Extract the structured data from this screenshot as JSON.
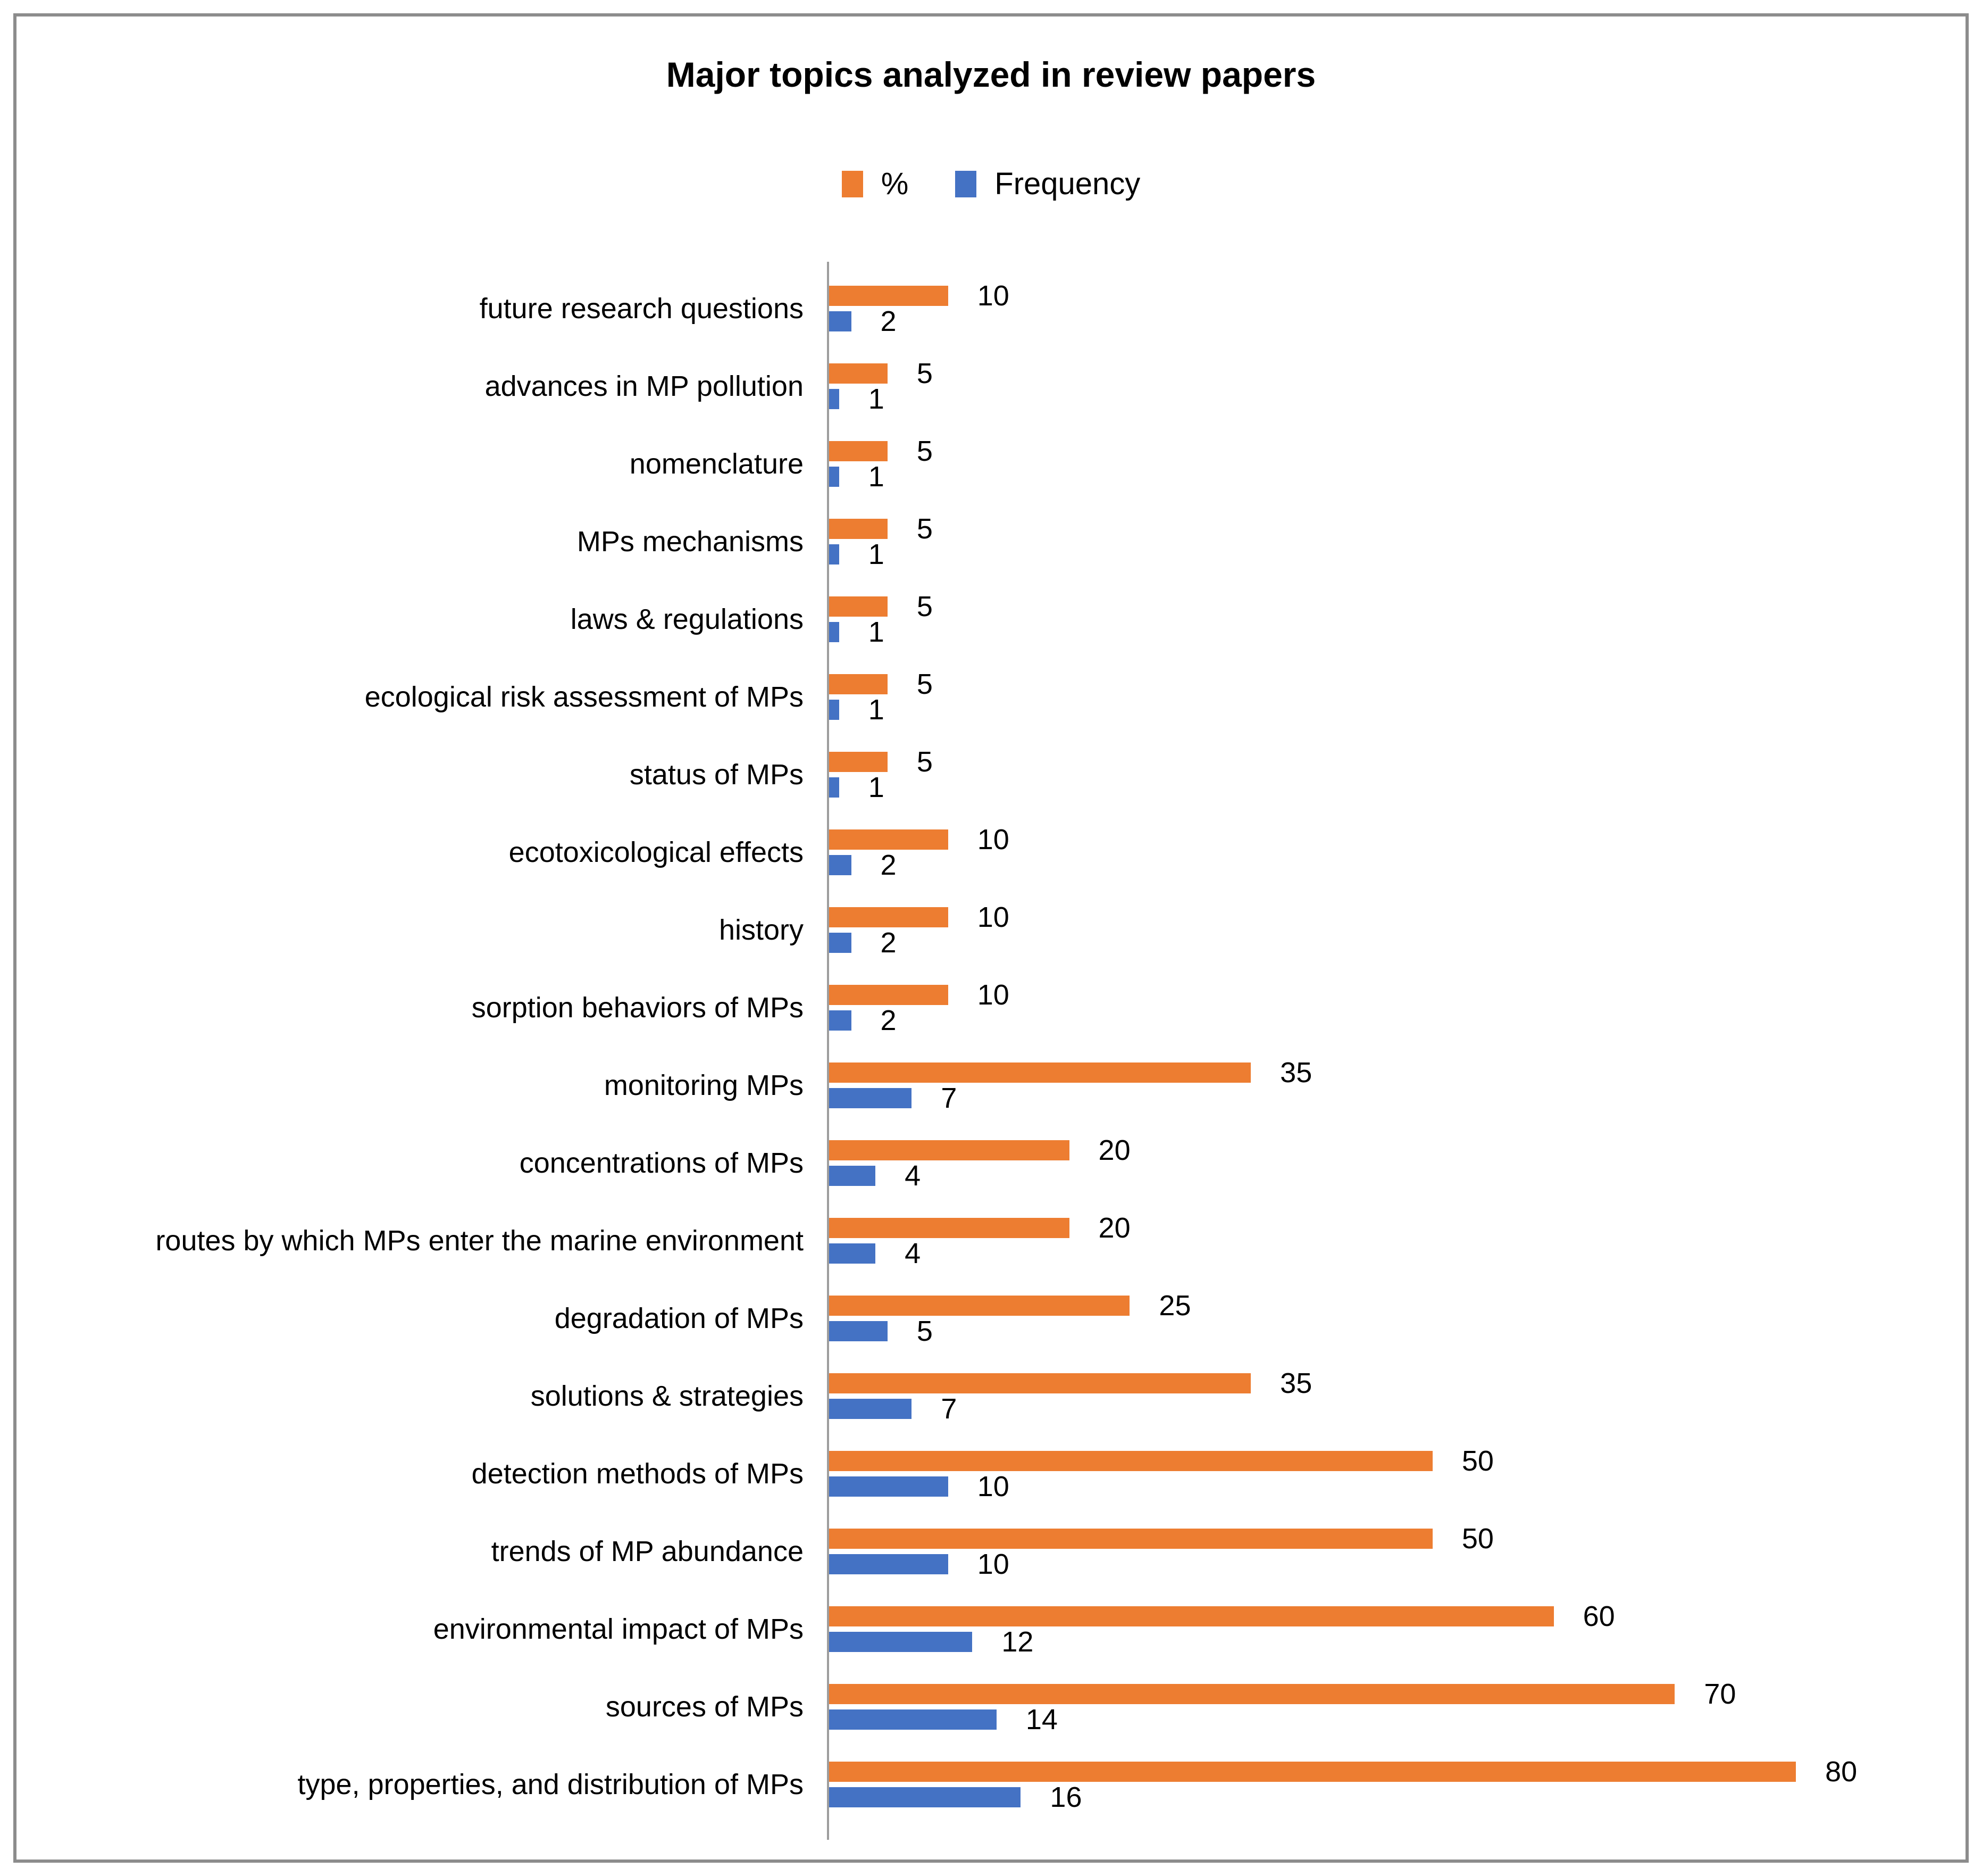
{
  "title": "Major topics analyzed in review papers",
  "legend": [
    {
      "label": "%",
      "color": "#ED7D31"
    },
    {
      "label": "Frequency",
      "color": "#4472C4"
    }
  ],
  "chart_data": {
    "type": "bar",
    "orientation": "horizontal",
    "title": "Major topics analyzed in review papers",
    "legend_position": "top",
    "data_labels": true,
    "grid": false,
    "axis_line_color": "#9D9D9D",
    "categories": [
      "future research questions",
      "advances in MP pollution",
      "nomenclature",
      "MPs mechanisms",
      "laws & regulations",
      "ecological risk assessment of MPs",
      "status of MPs",
      "ecotoxicological effects",
      "history",
      "sorption behaviors of MPs",
      "monitoring MPs",
      "concentrations of MPs",
      "routes by which MPs enter the marine environment",
      "degradation of MPs",
      "solutions & strategies",
      "detection methods of MPs",
      "trends of MP abundance",
      "environmental impact of MPs",
      "sources of MPs",
      "type, properties, and distribution of MPs"
    ],
    "series": [
      {
        "name": "%",
        "color": "#ED7D31",
        "values": [
          10,
          5,
          5,
          5,
          5,
          5,
          5,
          10,
          10,
          10,
          35,
          20,
          20,
          25,
          35,
          50,
          50,
          60,
          70,
          80
        ]
      },
      {
        "name": "Frequency",
        "color": "#4472C4",
        "values": [
          2,
          1,
          1,
          1,
          1,
          1,
          1,
          2,
          2,
          2,
          7,
          4,
          4,
          5,
          7,
          10,
          10,
          12,
          14,
          16
        ]
      }
    ],
    "value_axis_max_units": 94
  }
}
